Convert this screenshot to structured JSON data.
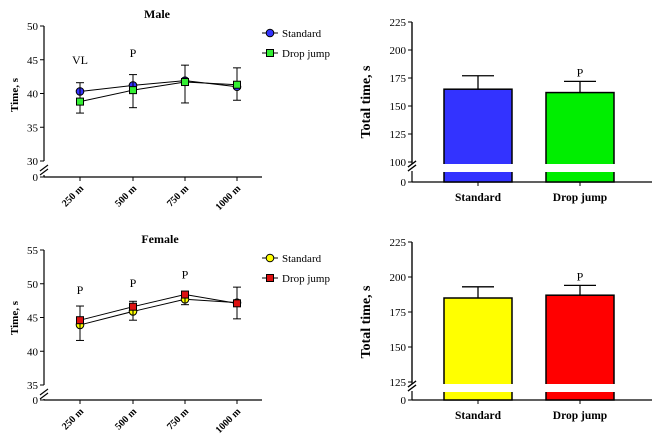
{
  "chart_data": [
    {
      "id": "male-line",
      "type": "line",
      "title": "Male",
      "ylabel": "Time, s",
      "categories": [
        "250 m",
        "500 m",
        "750 m",
        "1000 m"
      ],
      "ylim": [
        30,
        50
      ],
      "yticks": [
        "30",
        "35",
        "40",
        "45",
        "50"
      ],
      "y_baseline_label": "0",
      "axis_break": true,
      "series": [
        {
          "name": "Standard",
          "values": [
            40.3,
            41.2,
            41.9,
            41.0
          ],
          "err": [
            3.2,
            3.3,
            3.3,
            2.0
          ],
          "color": "#3333ff",
          "marker": "circle"
        },
        {
          "name": "Drop jump",
          "values": [
            38.8,
            40.5,
            41.7,
            41.3
          ],
          "err": [
            2.8,
            2.3,
            2.5,
            2.5
          ],
          "color": "#33ee33",
          "marker": "square"
        }
      ],
      "annotations": [
        {
          "category": "250 m",
          "text": "VL"
        },
        {
          "category": "500 m",
          "text": "P"
        }
      ],
      "legend": "top-right"
    },
    {
      "id": "male-bar",
      "type": "bar",
      "ylabel": "Total time, s",
      "categories": [
        "Standard",
        "Drop jump"
      ],
      "values": [
        165,
        162
      ],
      "err": [
        12,
        10
      ],
      "colors": [
        "#3333ff",
        "#00ee00"
      ],
      "ylim": [
        100,
        225
      ],
      "yticks": [
        "100",
        "125",
        "150",
        "175",
        "200",
        "225"
      ],
      "y_baseline_label": "0",
      "axis_break": true,
      "annotations": [
        {
          "category": "Drop jump",
          "text": "P"
        }
      ]
    },
    {
      "id": "female-line",
      "type": "line",
      "title": "Female",
      "ylabel": "Time, s",
      "categories": [
        "250 m",
        "500 m",
        "750 m",
        "1000 m"
      ],
      "ylim": [
        35,
        55
      ],
      "yticks": [
        "35",
        "40",
        "45",
        "50",
        "55"
      ],
      "y_baseline_label": "0",
      "axis_break": true,
      "series": [
        {
          "name": "Standard",
          "values": [
            43.9,
            45.9,
            47.7,
            47.2
          ],
          "err": [
            2.8,
            1.5,
            0.9,
            2.3
          ],
          "color": "#ffff00",
          "marker": "circle"
        },
        {
          "name": "Drop jump",
          "values": [
            44.6,
            46.6,
            48.4,
            47.1
          ],
          "err": [
            3.0,
            2.0,
            1.5,
            2.3
          ],
          "color": "#dd1111",
          "marker": "square"
        }
      ],
      "annotations": [
        {
          "category": "250 m",
          "text": "P"
        },
        {
          "category": "500 m",
          "text": "P"
        },
        {
          "category": "750 m",
          "text": "P"
        }
      ],
      "legend": "top-right"
    },
    {
      "id": "female-bar",
      "type": "bar",
      "ylabel": "Total time, s",
      "categories": [
        "Standard",
        "Drop jump"
      ],
      "values": [
        185,
        187
      ],
      "err": [
        8,
        7
      ],
      "colors": [
        "#ffff00",
        "#ff0000"
      ],
      "ylim": [
        125,
        225
      ],
      "yticks": [
        "125",
        "150",
        "175",
        "200",
        "225"
      ],
      "y_baseline_label": "0",
      "axis_break": true,
      "annotations": [
        {
          "category": "Drop jump",
          "text": "P"
        }
      ]
    }
  ]
}
